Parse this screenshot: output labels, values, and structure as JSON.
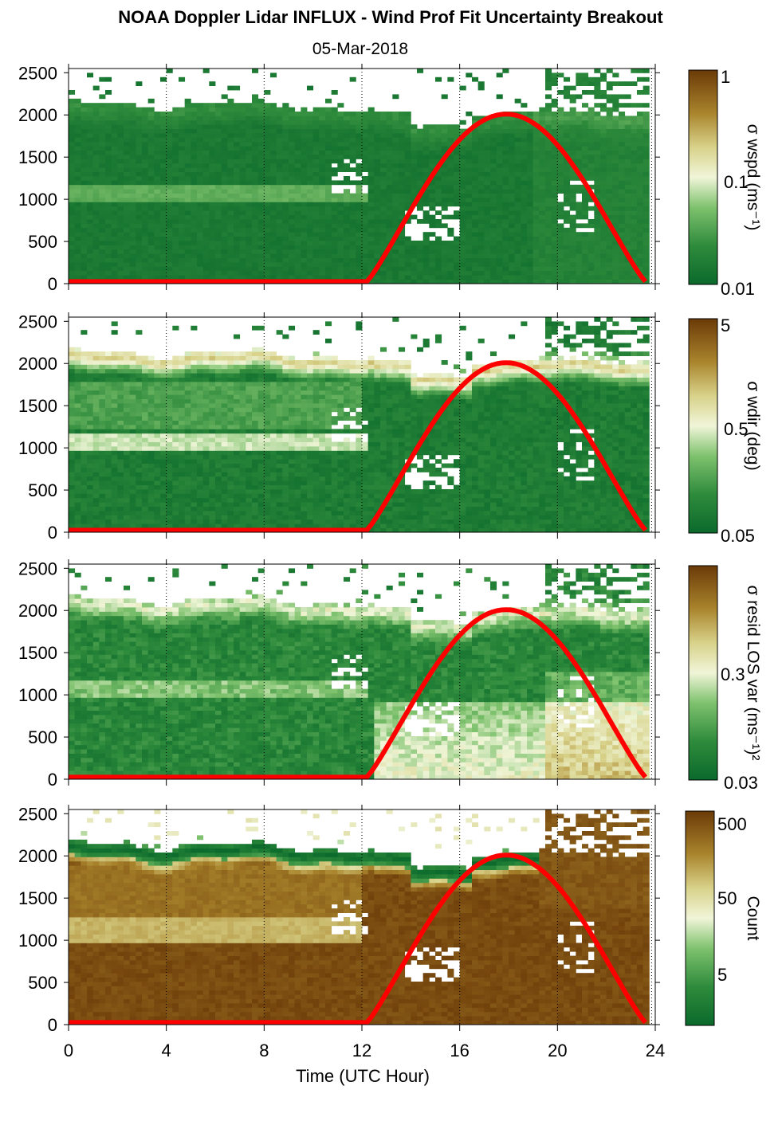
{
  "title": "NOAA Doppler Lidar INFLUX - Wind Prof Fit Uncertainty Breakout",
  "subtitle": "05-Mar-2018",
  "chart_data": [
    {
      "type": "heatmap",
      "panel": 1,
      "xlabel": "",
      "ylabel": "",
      "colorbar_label": "σ wspd (ms⁻¹)",
      "colorbar_ticks": [
        "1",
        "0.1",
        "0.01"
      ],
      "colorbar_scale": "log",
      "xlim": [
        0,
        24
      ],
      "ylim": [
        0,
        2550
      ],
      "yticks": [
        "0",
        "500",
        "1000",
        "1500",
        "2000",
        "2500"
      ],
      "xgrid_dotted": [
        4,
        8,
        12,
        16,
        20
      ],
      "sun_curve": {
        "color": "#ff0000",
        "rise_hour": 12.2,
        "peak_hour": 17.9,
        "set_hour": 23.6,
        "peak_value": 2010
      }
    },
    {
      "type": "heatmap",
      "panel": 2,
      "xlabel": "",
      "ylabel": "",
      "colorbar_label": "σ wdir (deg)",
      "colorbar_ticks": [
        "5",
        "0.5",
        "0.05"
      ],
      "colorbar_scale": "log",
      "xlim": [
        0,
        24
      ],
      "ylim": [
        0,
        2550
      ],
      "yticks": [
        "0",
        "500",
        "1000",
        "1500",
        "2000",
        "2500"
      ],
      "xgrid_dotted": [
        4,
        8,
        12,
        16,
        20
      ],
      "sun_curve": {
        "color": "#ff0000",
        "rise_hour": 12.2,
        "peak_hour": 17.9,
        "set_hour": 23.6,
        "peak_value": 2010
      }
    },
    {
      "type": "heatmap",
      "panel": 3,
      "xlabel": "",
      "ylabel": "",
      "colorbar_label": "σ resid LOS var (ms⁻¹)²",
      "colorbar_ticks": [
        "0.3",
        "0.03"
      ],
      "colorbar_scale": "log",
      "xlim": [
        0,
        24
      ],
      "ylim": [
        0,
        2550
      ],
      "yticks": [
        "0",
        "500",
        "1000",
        "1500",
        "2000",
        "2500"
      ],
      "xgrid_dotted": [
        4,
        8,
        12,
        16,
        20
      ],
      "sun_curve": {
        "color": "#ff0000",
        "rise_hour": 12.2,
        "peak_hour": 17.9,
        "set_hour": 23.6,
        "peak_value": 2010
      }
    },
    {
      "type": "heatmap",
      "panel": 4,
      "xlabel": "Time (UTC Hour)",
      "ylabel": "",
      "colorbar_label": "Count",
      "colorbar_ticks": [
        "500",
        "50",
        "5"
      ],
      "colorbar_scale": "log",
      "xlim": [
        0,
        24
      ],
      "ylim": [
        0,
        2550
      ],
      "xticks": [
        "0",
        "4",
        "8",
        "12",
        "16",
        "20",
        "24"
      ],
      "yticks": [
        "0",
        "500",
        "1000",
        "1500",
        "2000",
        "2500"
      ],
      "xgrid_dotted": [
        4,
        8,
        12,
        16,
        20
      ],
      "sun_curve": {
        "color": "#ff0000",
        "rise_hour": 12.2,
        "peak_hour": 17.9,
        "set_hour": 23.6,
        "peak_value": 2010
      }
    }
  ]
}
